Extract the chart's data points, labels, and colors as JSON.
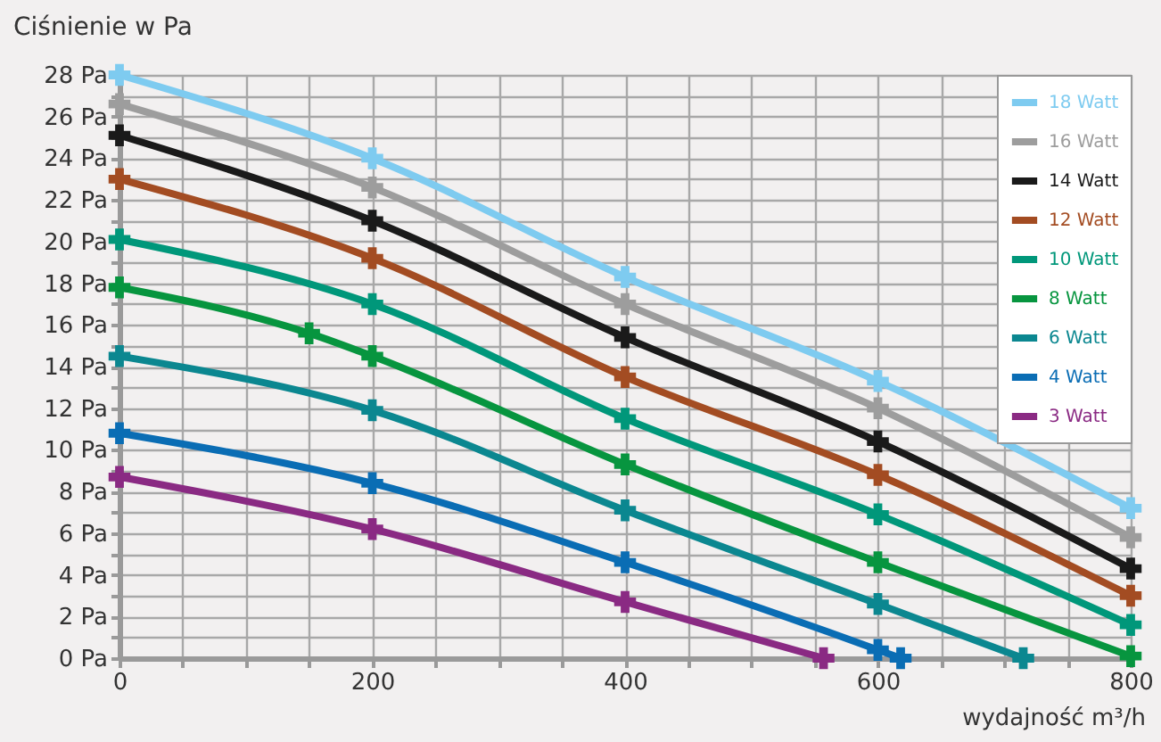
{
  "chart_data": {
    "type": "line",
    "ylabel": "Ciśnienie w Pa",
    "xlabel": "wydajność m³/h",
    "xlim": [
      0,
      800
    ],
    "xticks": [
      0,
      {
        "value": 50,
        "label": null
      },
      {
        "value": 100,
        "label": null
      },
      {
        "value": 150,
        "label": null
      },
      200,
      {
        "value": 250,
        "label": null
      },
      {
        "value": 300,
        "label": null
      },
      {
        "value": 350,
        "label": null
      },
      400,
      {
        "value": 450,
        "label": null
      },
      {
        "value": 500,
        "label": null
      },
      {
        "value": 550,
        "label": null
      },
      600,
      {
        "value": 650,
        "label": null
      },
      {
        "value": 700,
        "label": null
      },
      {
        "value": 750,
        "label": null
      },
      800
    ],
    "ylim": [
      0,
      28
    ],
    "yticks": [
      {
        "value": 0,
        "label": "0 Pa"
      },
      {
        "value": 1,
        "label": null
      },
      {
        "value": 2,
        "label": "2 Pa"
      },
      {
        "value": 3,
        "label": null
      },
      {
        "value": 4,
        "label": "4 Pa"
      },
      {
        "value": 5,
        "label": null
      },
      {
        "value": 6,
        "label": "6 Pa"
      },
      {
        "value": 7,
        "label": null
      },
      {
        "value": 8,
        "label": "8 Pa"
      },
      {
        "value": 9,
        "label": null
      },
      {
        "value": 10,
        "label": "10 Pa"
      },
      {
        "value": 11,
        "label": null
      },
      {
        "value": 12,
        "label": "12 Pa"
      },
      {
        "value": 13,
        "label": null
      },
      {
        "value": 14,
        "label": "14 Pa"
      },
      {
        "value": 15,
        "label": null
      },
      {
        "value": 16,
        "label": "16 Pa"
      },
      {
        "value": 17,
        "label": null
      },
      {
        "value": 18,
        "label": "18 Pa"
      },
      {
        "value": 19,
        "label": null
      },
      {
        "value": 20,
        "label": "20 Pa"
      },
      {
        "value": 21,
        "label": null
      },
      {
        "value": 22,
        "label": "22 Pa"
      },
      {
        "value": 23,
        "label": null
      },
      {
        "value": 24,
        "label": "24 Pa"
      },
      {
        "value": 25,
        "label": null
      },
      {
        "value": 26,
        "label": "26 Pa"
      },
      {
        "value": 27,
        "label": null
      },
      {
        "value": 28,
        "label": "28 Pa"
      }
    ],
    "grid": true,
    "legend": "top right",
    "marker": "cross",
    "line_style": "solid",
    "series": [
      {
        "name": "18 Watt",
        "color": "#7ecbf0",
        "x": [
          0,
          200,
          400,
          600,
          800
        ],
        "values": [
          28,
          24,
          18.3,
          13.3,
          7.2
        ]
      },
      {
        "name": "16 Watt",
        "color": "#9d9d9d",
        "x": [
          0,
          200,
          400,
          600,
          800
        ],
        "values": [
          26.6,
          22.6,
          17,
          12,
          5.8
        ]
      },
      {
        "name": "14 Watt",
        "color": "#1a1a1a",
        "x": [
          0,
          200,
          400,
          600,
          800
        ],
        "values": [
          25.1,
          21,
          15.4,
          10.4,
          4.3
        ]
      },
      {
        "name": "12 Watt",
        "color": "#a34c22",
        "x": [
          0,
          200,
          400,
          600,
          800
        ],
        "values": [
          23,
          19.2,
          13.5,
          8.8,
          3
        ]
      },
      {
        "name": "10 Watt",
        "color": "#00977a",
        "x": [
          0,
          200,
          400,
          600,
          800
        ],
        "values": [
          20.1,
          17,
          11.5,
          6.9,
          1.6
        ]
      },
      {
        "name": "8 Watt",
        "color": "#07953f",
        "x": [
          0,
          150,
          200,
          400,
          600,
          800
        ],
        "values": [
          17.8,
          15.6,
          14.5,
          9.3,
          4.6,
          0.1
        ]
      },
      {
        "name": "6 Watt",
        "color": "#0b8790",
        "x": [
          0,
          200,
          400,
          600,
          715
        ],
        "values": [
          14.5,
          11.9,
          7.1,
          2.6,
          0
        ]
      },
      {
        "name": "4 Watt",
        "color": "#0a6db4",
        "x": [
          0,
          200,
          400,
          600,
          618
        ],
        "values": [
          10.8,
          8.4,
          4.6,
          0.4,
          0
        ]
      },
      {
        "name": "3 Watt",
        "color": "#8a2a83",
        "x": [
          0,
          200,
          400,
          557
        ],
        "values": [
          8.7,
          6.2,
          2.7,
          0
        ]
      }
    ]
  }
}
